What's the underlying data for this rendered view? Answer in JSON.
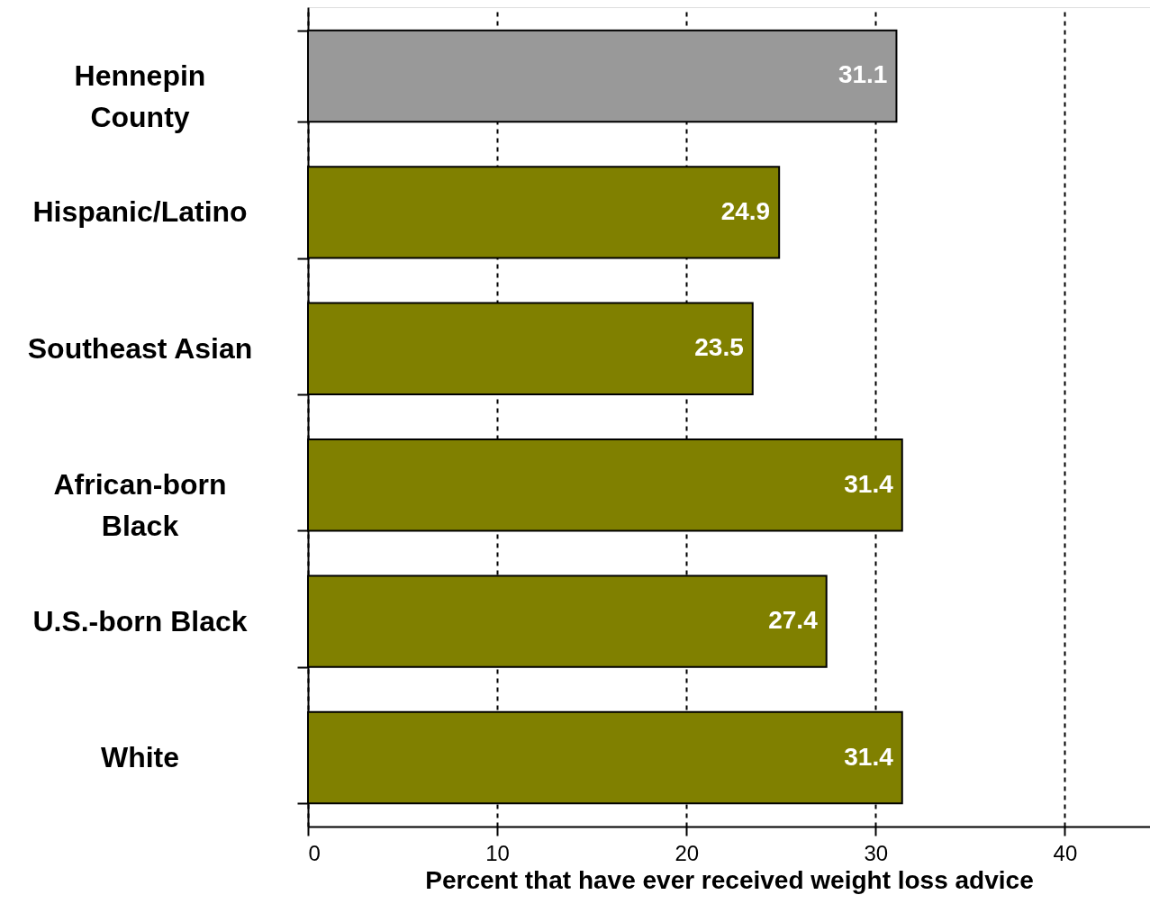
{
  "chart_data": {
    "type": "bar",
    "orientation": "horizontal",
    "categories": [
      "Hennepin\nCounty",
      "Hispanic/Latino",
      "Southeast Asian",
      "African-born\nBlack",
      "U.S.-born Black",
      "White"
    ],
    "values": [
      31.1,
      24.9,
      23.5,
      31.4,
      27.4,
      31.4
    ],
    "colors": [
      "#999999",
      "#808000",
      "#808000",
      "#808000",
      "#808000",
      "#808000"
    ],
    "xlabel": "Percent that have ever received weight loss advice",
    "xlim": [
      0,
      44.5
    ],
    "xticks": [
      0,
      10,
      20,
      30,
      40
    ],
    "grid": "x",
    "data_labels": true
  }
}
